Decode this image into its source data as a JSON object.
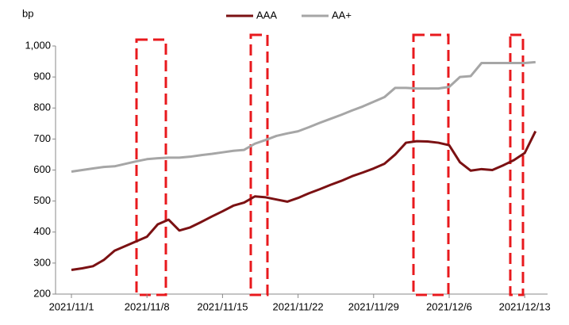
{
  "chart_data": {
    "type": "line",
    "y_label": "bp",
    "categories": [
      "2021/11/1",
      null,
      null,
      null,
      null,
      null,
      null,
      "2021/11/8",
      null,
      null,
      null,
      null,
      null,
      null,
      "2021/11/15",
      null,
      null,
      null,
      null,
      null,
      null,
      "2021/11/22",
      null,
      null,
      null,
      null,
      null,
      null,
      "2021/11/29",
      null,
      null,
      null,
      null,
      null,
      null,
      "2021/12/6",
      null,
      null,
      null,
      null,
      null,
      null,
      "2021/12/13",
      null
    ],
    "series": [
      {
        "name": "AAA",
        "color": "#7b1113",
        "values": [
          278,
          283,
          290,
          310,
          340,
          355,
          370,
          385,
          425,
          440,
          405,
          415,
          432,
          450,
          467,
          485,
          495,
          515,
          512,
          505,
          498,
          510,
          525,
          538,
          552,
          565,
          580,
          592,
          605,
          620,
          650,
          688,
          693,
          692,
          688,
          680,
          625,
          598,
          603,
          600,
          615,
          632,
          655,
          725
        ]
      },
      {
        "name": "AA+",
        "color": "#a6a6a6",
        "values": [
          595,
          600,
          605,
          610,
          612,
          620,
          628,
          635,
          638,
          640,
          640,
          643,
          648,
          652,
          657,
          662,
          665,
          685,
          697,
          710,
          718,
          725,
          738,
          752,
          765,
          778,
          792,
          805,
          820,
          835,
          865,
          865,
          863,
          863,
          863,
          868,
          900,
          903,
          945,
          945,
          945,
          945,
          945,
          948
        ]
      }
    ],
    "ylim": [
      200,
      1000
    ],
    "yticks": [
      200,
      300,
      400,
      500,
      600,
      700,
      800,
      900,
      {
        "value": 1000,
        "label": "1,000"
      }
    ],
    "legend": "top"
  }
}
